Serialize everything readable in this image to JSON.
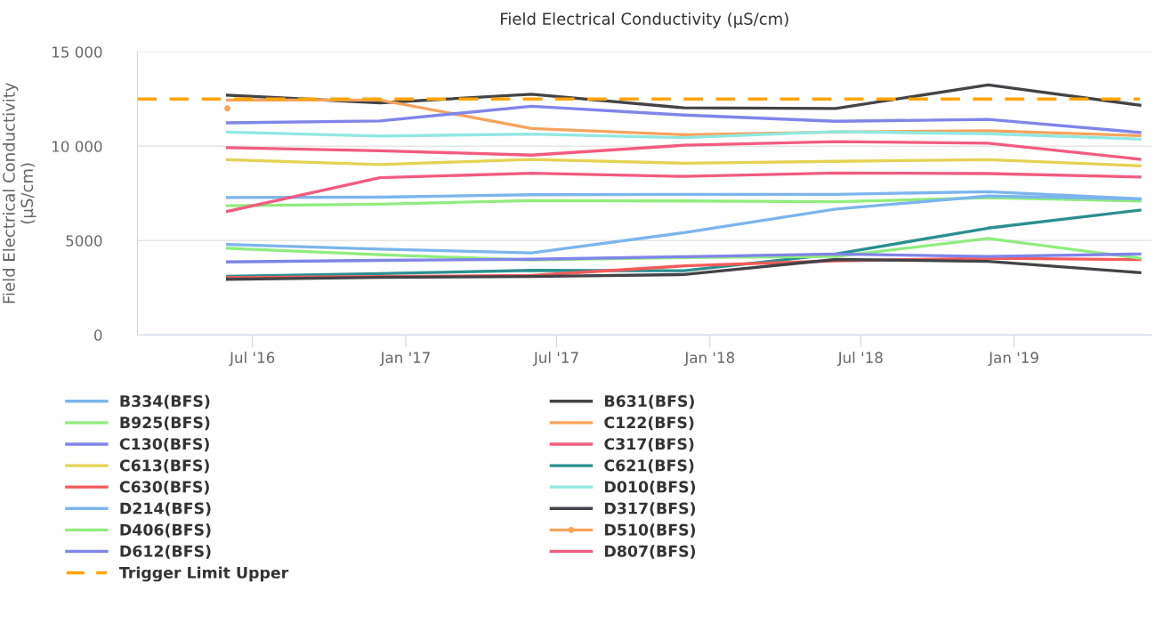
{
  "chart_data": {
    "type": "line",
    "title": "Field Electrical Conductivity (µS/cm)",
    "ylabel": "Field Electrical Conductivity\n(µS/cm)",
    "x": [
      "2016-06-01",
      "2016-12-01",
      "2017-06-01",
      "2017-12-01",
      "2018-06-01",
      "2018-12-01",
      "2019-06-01"
    ],
    "xlim": [
      "2016-02-14",
      "2019-06-15"
    ],
    "xticks": [
      {
        "value": "2016-07-01",
        "label": "Jul '16"
      },
      {
        "value": "2017-01-01",
        "label": "Jan '17"
      },
      {
        "value": "2017-07-01",
        "label": "Jul '17"
      },
      {
        "value": "2018-01-01",
        "label": "Jan '18"
      },
      {
        "value": "2018-07-01",
        "label": "Jul '18"
      },
      {
        "value": "2019-01-01",
        "label": "Jan '19"
      }
    ],
    "ylim": [
      0,
      15000
    ],
    "yticks": [
      0,
      5000,
      {
        "value": 10000,
        "label": "10 000"
      },
      {
        "value": 15000,
        "label": "15 000"
      }
    ],
    "grid": "y",
    "legend": "bottom",
    "marker": "none",
    "line_style": "solid",
    "series": [
      {
        "name": "B334(BFS)",
        "color": "#7cb5ec",
        "values": [
          7280,
          7300,
          7430,
          7450,
          7450,
          7590,
          7210
        ]
      },
      {
        "name": "B631(BFS)",
        "color": "#434348",
        "values": [
          12700,
          12300,
          12750,
          12030,
          12000,
          13250,
          12170
        ]
      },
      {
        "name": "B925(BFS)",
        "color": "#90ed7d",
        "values": [
          6850,
          6930,
          7120,
          7100,
          7060,
          7270,
          7100
        ]
      },
      {
        "name": "C122(BFS)",
        "color": "#f7a35c",
        "values": [
          12450,
          12450,
          10940,
          10610,
          10750,
          10820,
          10560
        ]
      },
      {
        "name": "C130(BFS)",
        "color": "#8085e9",
        "values": [
          11240,
          11340,
          12120,
          11650,
          11320,
          11420,
          10730
        ]
      },
      {
        "name": "C317(BFS)",
        "color": "#f15c80",
        "values": [
          9920,
          9760,
          9530,
          10050,
          10240,
          10160,
          9310
        ]
      },
      {
        "name": "C613(BFS)",
        "color": "#e4d354",
        "values": [
          9290,
          9030,
          9300,
          9100,
          9200,
          9290,
          8960
        ]
      },
      {
        "name": "C621(BFS)",
        "color": "#2b908f",
        "values": [
          3110,
          3250,
          3420,
          3400,
          4290,
          5660,
          6610
        ]
      },
      {
        "name": "C630(BFS)",
        "color": "#f45b5b",
        "values": [
          3040,
          3100,
          3150,
          3660,
          3930,
          4060,
          3990
        ]
      },
      {
        "name": "D010(BFS)",
        "color": "#91e8e1",
        "values": [
          10750,
          10540,
          10640,
          10450,
          10770,
          10660,
          10380
        ]
      },
      {
        "name": "D214(BFS)",
        "color": "#7cb5ec",
        "values": [
          4790,
          4550,
          4350,
          5420,
          6670,
          7360,
          7200
        ]
      },
      {
        "name": "D317(BFS)",
        "color": "#434348",
        "values": [
          2950,
          3050,
          3100,
          3200,
          4000,
          3900,
          3300
        ]
      },
      {
        "name": "D406(BFS)",
        "color": "#90ed7d",
        "values": [
          4590,
          4250,
          3970,
          4100,
          4160,
          5110,
          4070
        ]
      },
      {
        "name": "D510(BFS)",
        "color": "#f7a35c",
        "marker": "circle",
        "values": [
          12000,
          null,
          null,
          null,
          null,
          null,
          null
        ]
      },
      {
        "name": "D612(BFS)",
        "color": "#8085e9",
        "values": [
          3870,
          3950,
          4010,
          4150,
          4290,
          4160,
          4290
        ]
      },
      {
        "name": "D807(BFS)",
        "color": "#f15c80",
        "values": [
          6550,
          8330,
          8570,
          8400,
          8580,
          8550,
          8370
        ]
      },
      {
        "name": "Trigger Limit Upper",
        "color": "#ffa500",
        "line_style": "dashed",
        "x": [
          "2016-02-14",
          "2019-06-01"
        ],
        "values": [
          12500,
          12500
        ]
      }
    ]
  }
}
